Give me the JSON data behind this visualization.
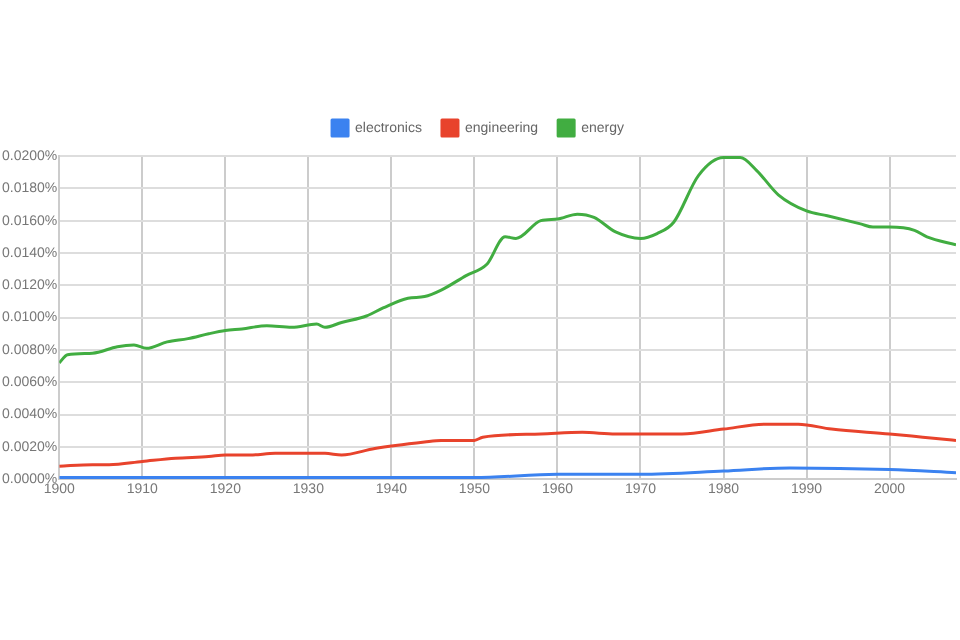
{
  "chart_data": {
    "type": "line",
    "xlim": [
      1900,
      2008
    ],
    "xticks": [
      1900,
      1910,
      1920,
      1930,
      1940,
      1950,
      1960,
      1970,
      1980,
      1990,
      2000
    ],
    "ylim": [
      0,
      0.02
    ],
    "yticks": [
      {
        "value": 0,
        "label": "0.0000%"
      },
      {
        "value": 0.002,
        "label": "0.0020%"
      },
      {
        "value": 0.004,
        "label": "0.0040%"
      },
      {
        "value": 0.006,
        "label": "0.0060%"
      },
      {
        "value": 0.008,
        "label": "0.0080%"
      },
      {
        "value": 0.01,
        "label": "0.0100%"
      },
      {
        "value": 0.012,
        "label": "0.0120%"
      },
      {
        "value": 0.014,
        "label": "0.0140%"
      },
      {
        "value": 0.016,
        "label": "0.0160%"
      },
      {
        "value": 0.018,
        "label": "0.0180%"
      },
      {
        "value": 0.02,
        "label": "0.0200%"
      }
    ],
    "grid": true,
    "legend": "top",
    "marker": "none",
    "line_style": "solid",
    "series": [
      {
        "name": "electronics",
        "color": "#3b82f0",
        "x": [
          1900,
          1930,
          1940,
          1950,
          1960,
          1970,
          1980,
          1988,
          2000,
          2008
        ],
        "values": [
          0.0001,
          0.0001,
          0.0001,
          0.0001,
          0.0003,
          0.0003,
          0.0005,
          0.0007,
          0.0006,
          0.0004
        ]
      },
      {
        "name": "engineering",
        "color": "#e8432c",
        "x": [
          1900,
          1904,
          1906,
          1910,
          1914,
          1918,
          1920,
          1923,
          1926,
          1932,
          1934,
          1938,
          1944,
          1946,
          1950,
          1951,
          1958,
          1963,
          1967,
          1975,
          1980,
          1985,
          1989,
          1993,
          2000,
          2004,
          2008
        ],
        "values": [
          0.0008,
          0.0009,
          0.0009,
          0.0011,
          0.0013,
          0.0014,
          0.0015,
          0.0015,
          0.0016,
          0.0016,
          0.0015,
          0.0019,
          0.0023,
          0.0024,
          0.0024,
          0.0026,
          0.0028,
          0.0029,
          0.0028,
          0.0028,
          0.0031,
          0.0034,
          0.0034,
          0.0031,
          0.0028,
          0.0026,
          0.0024
        ]
      },
      {
        "name": "energy",
        "color": "#41ad41",
        "x": [
          1900,
          1901,
          1904,
          1907,
          1909,
          1910.5,
          1913,
          1915.5,
          1918,
          1920,
          1922,
          1925,
          1928,
          1931,
          1932,
          1934,
          1937,
          1939,
          1942,
          1944,
          1946,
          1949,
          1951.5,
          1953.7,
          1955,
          1958,
          1960,
          1962.4,
          1964.4,
          1967,
          1970,
          1972,
          1974,
          1977,
          1980,
          1982,
          1984,
          1986.6,
          1990,
          1992.5,
          1996.5,
          1998,
          2000,
          2003,
          2004.5,
          2008
        ],
        "values": [
          0.0072,
          0.0077,
          0.0078,
          0.0082,
          0.0083,
          0.0081,
          0.0085,
          0.0087,
          0.009,
          0.0092,
          0.0093,
          0.0095,
          0.0094,
          0.0096,
          0.0094,
          0.0097,
          0.0101,
          0.0106,
          0.0112,
          0.0113,
          0.0117,
          0.0126,
          0.0133,
          0.015,
          0.0149,
          0.016,
          0.0161,
          0.0164,
          0.0162,
          0.0153,
          0.0149,
          0.0152,
          0.0159,
          0.0188,
          0.0199,
          0.0199,
          0.0191,
          0.0176,
          0.0166,
          0.0163,
          0.0158,
          0.0156,
          0.0156,
          0.0154,
          0.015,
          0.0145
        ]
      }
    ]
  }
}
